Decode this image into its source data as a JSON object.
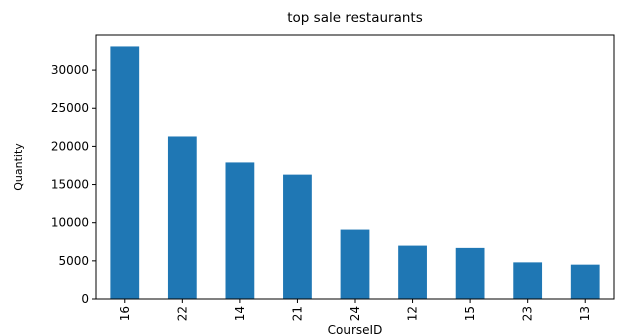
{
  "chart_data": {
    "type": "bar",
    "title": "top sale restaurants",
    "x_label": "CourseID",
    "y_label": "Quantity",
    "categories": [
      "16",
      "22",
      "14",
      "21",
      "24",
      "12",
      "15",
      "23",
      "13"
    ],
    "values": [
      33100,
      21300,
      17900,
      16300,
      9100,
      7000,
      6700,
      4800,
      4500
    ],
    "color": "#1f77b4",
    "ylim": [
      0,
      34600
    ],
    "yticks": [
      0,
      5000,
      10000,
      15000,
      20000,
      25000,
      30000
    ],
    "grid": false
  }
}
